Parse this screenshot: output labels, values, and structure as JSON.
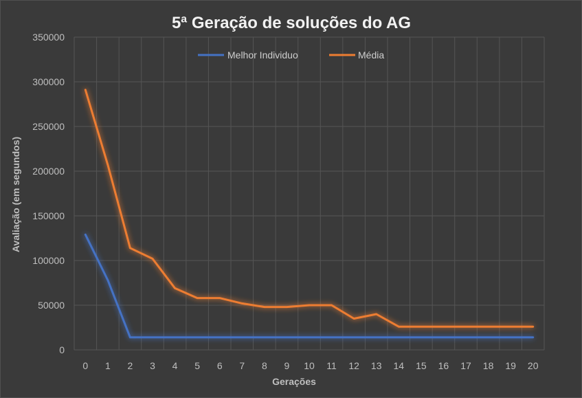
{
  "chart_data": {
    "type": "line",
    "title": "5ª Geração de soluções do AG",
    "xlabel": "Gerações",
    "ylabel": "Avaliação (em segundos)",
    "x": [
      0,
      1,
      2,
      3,
      4,
      5,
      6,
      7,
      8,
      9,
      10,
      11,
      12,
      13,
      14,
      15,
      16,
      17,
      18,
      19,
      20
    ],
    "ylim": [
      0,
      350000
    ],
    "yticks": [
      0,
      50000,
      100000,
      150000,
      200000,
      250000,
      300000,
      350000
    ],
    "grid": true,
    "legend_position": "top-center",
    "series": [
      {
        "name": "Melhor Individuo",
        "color": "#4472c4",
        "values": [
          129000,
          78000,
          14000,
          14000,
          14000,
          14000,
          14000,
          14000,
          14000,
          14000,
          14000,
          14000,
          14000,
          14000,
          14000,
          14000,
          14000,
          14000,
          14000,
          14000,
          14000
        ]
      },
      {
        "name": "Média",
        "color": "#ed7d31",
        "values": [
          291000,
          207000,
          114000,
          102000,
          69000,
          58000,
          58000,
          52000,
          48000,
          48000,
          50000,
          50000,
          35000,
          40000,
          26000,
          26000,
          26000,
          26000,
          26000,
          26000,
          26000
        ]
      }
    ]
  }
}
